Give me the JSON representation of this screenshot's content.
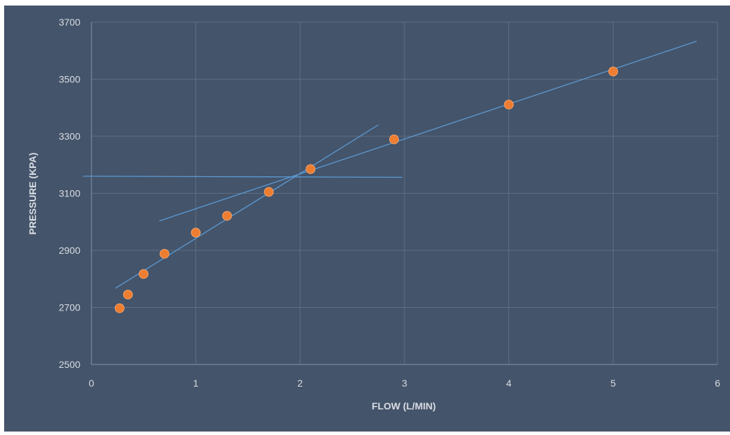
{
  "colors": {
    "frame": "#ffffff",
    "background": "#44546a",
    "gridline": "#5f6e83",
    "axis_line": "#8593a6",
    "text": "#d9dde4",
    "point": "#ed7d31",
    "point_edge": "#f4a36b",
    "fit_line": "#5b9bd5"
  },
  "chart_data": {
    "type": "scatter",
    "title": "",
    "xlabel": "FLOW (L/MIN)",
    "ylabel": "PRESSURE (KPA)",
    "xlim": [
      0,
      6
    ],
    "ylim": [
      2500,
      3700
    ],
    "xticks": [
      0,
      1,
      2,
      3,
      4,
      5,
      6
    ],
    "yticks": [
      2500,
      2700,
      2900,
      3100,
      3300,
      3500,
      3700
    ],
    "grid": true,
    "legend": false,
    "series": [
      {
        "points": [
          {
            "x": 0.27,
            "y": 2697
          },
          {
            "x": 0.35,
            "y": 2745
          },
          {
            "x": 0.5,
            "y": 2817
          },
          {
            "x": 0.7,
            "y": 2888
          },
          {
            "x": 1.0,
            "y": 2962
          },
          {
            "x": 1.3,
            "y": 3021
          },
          {
            "x": 1.7,
            "y": 3105
          },
          {
            "x": 2.1,
            "y": 3185
          },
          {
            "x": 2.9,
            "y": 3289
          },
          {
            "x": 4.0,
            "y": 3411
          },
          {
            "x": 5.0,
            "y": 3527
          }
        ]
      }
    ],
    "trend_lines": [
      {
        "from": {
          "x": 0.23,
          "y": 2767
        },
        "to": {
          "x": 2.75,
          "y": 3340
        }
      },
      {
        "from": {
          "x": 0.65,
          "y": 3003
        },
        "to": {
          "x": 5.8,
          "y": 3633
        }
      },
      {
        "from": {
          "x": -0.08,
          "y": 3160
        },
        "to": {
          "x": 2.98,
          "y": 3156
        }
      }
    ]
  }
}
